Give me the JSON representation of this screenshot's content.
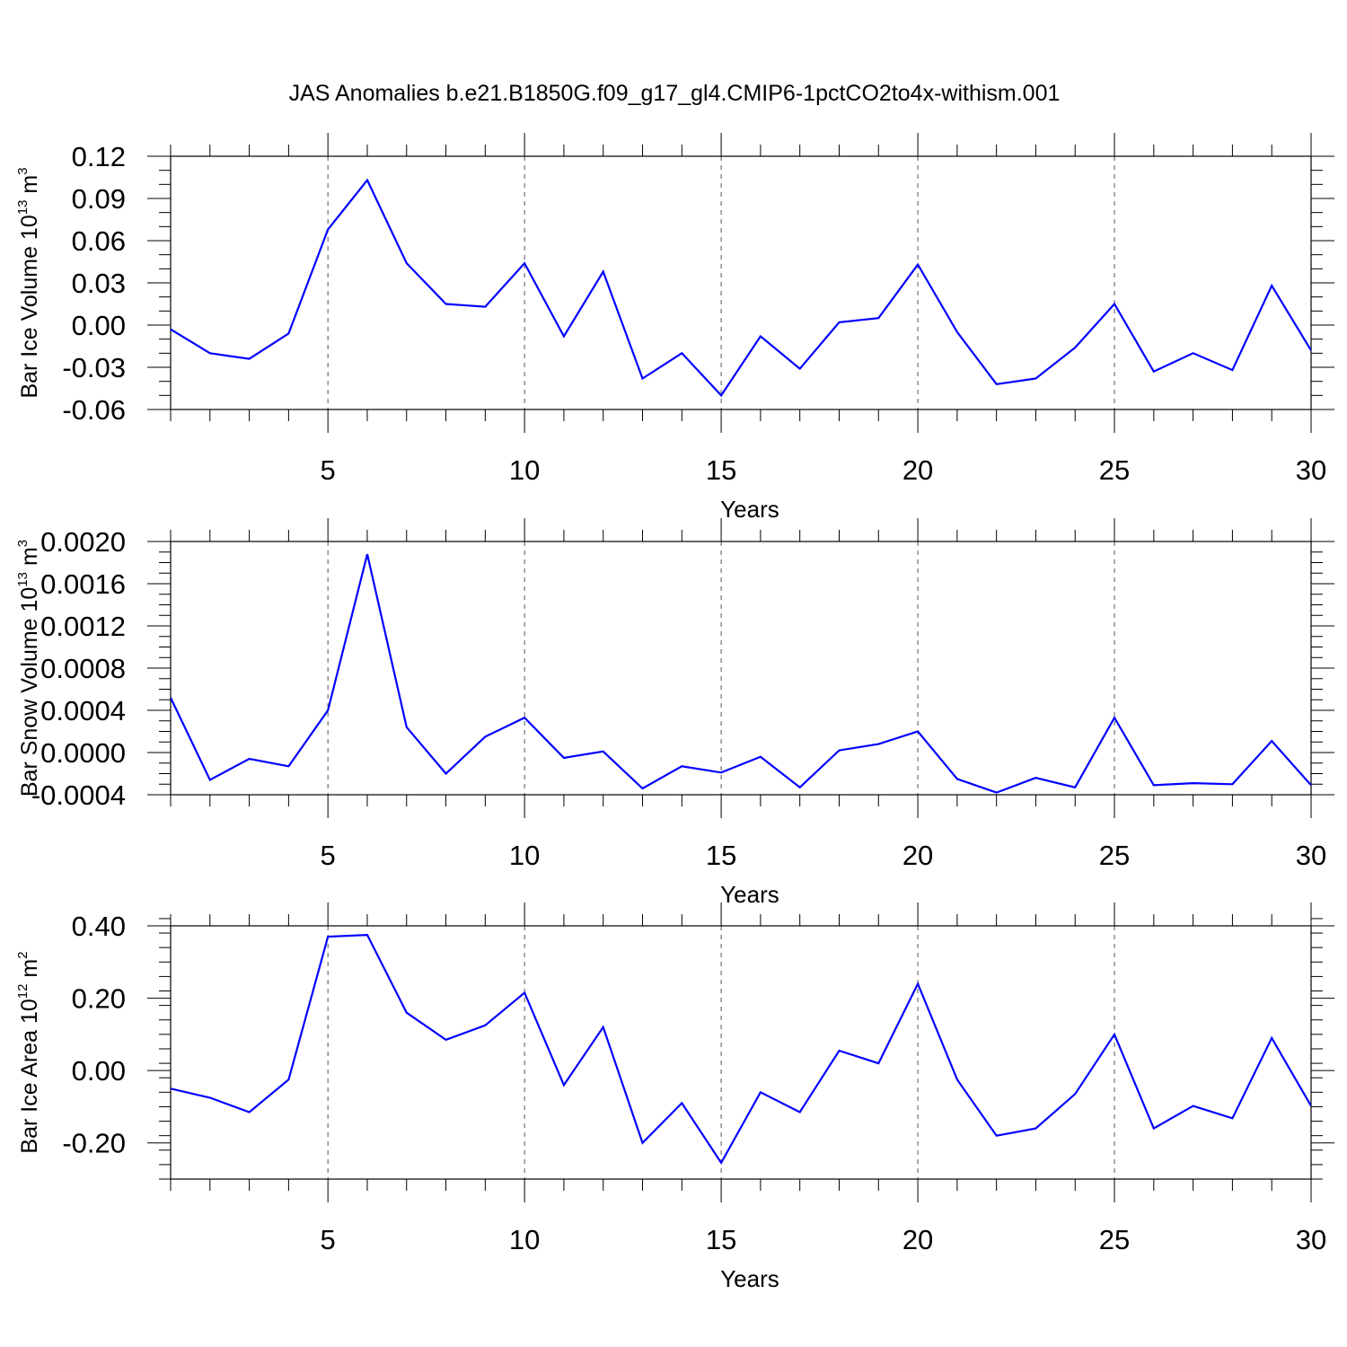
{
  "title": "JAS Anomalies b.e21.B1850G.f09_g17_gl4.CMIP6-1pctCO2to4x-withism.001",
  "colors": {
    "line": "#0000ff",
    "axis": "#000000",
    "grid": "#555555"
  },
  "chart_data": [
    {
      "type": "line",
      "ylabel": {
        "base": "Bar Ice Volume 10",
        "exp1": "13",
        "mid": " m",
        "exp2": "3"
      },
      "xlabel": "Years",
      "xlim": [
        1,
        30
      ],
      "ylim": [
        -0.06,
        0.12
      ],
      "x_ticks": [
        5,
        10,
        15,
        20,
        25,
        30
      ],
      "y_ticks": [
        -0.06,
        -0.03,
        0.0,
        0.03,
        0.06,
        0.09,
        0.12
      ],
      "y_tick_labels": [
        "-0.06",
        "-0.03",
        "0.00",
        "0.03",
        "0.06",
        "0.09",
        "0.12"
      ],
      "y_minor_step": 0.01,
      "grid": "vertical dashed at major x ticks",
      "x": [
        1,
        2,
        3,
        4,
        5,
        6,
        7,
        8,
        9,
        10,
        11,
        12,
        13,
        14,
        15,
        16,
        17,
        18,
        19,
        20,
        21,
        22,
        23,
        24,
        25,
        26,
        27,
        28,
        29,
        30
      ],
      "values": [
        -0.003,
        -0.02,
        -0.024,
        -0.006,
        0.068,
        0.103,
        0.044,
        0.015,
        0.013,
        0.044,
        -0.008,
        0.038,
        -0.038,
        -0.02,
        -0.05,
        -0.008,
        -0.031,
        0.002,
        0.005,
        0.043,
        -0.005,
        -0.042,
        -0.038,
        -0.016,
        0.015,
        -0.033,
        -0.02,
        -0.032,
        0.028,
        -0.018
      ]
    },
    {
      "type": "line",
      "ylabel": {
        "base": "Bar Snow Volume 10",
        "exp1": "13",
        "mid": " m",
        "exp2": "3"
      },
      "xlabel": "Years",
      "xlim": [
        1,
        30
      ],
      "ylim": [
        -0.0004,
        0.002
      ],
      "x_ticks": [
        5,
        10,
        15,
        20,
        25,
        30
      ],
      "y_ticks": [
        -0.0004,
        0.0,
        0.0004,
        0.0008,
        0.0012,
        0.0016,
        0.002
      ],
      "y_tick_labels": [
        "-0.0004",
        "0.0000",
        "0.0004",
        "0.0008",
        "0.0012",
        "0.0016",
        "0.0020"
      ],
      "y_minor_step": 0.0001,
      "grid": "vertical dashed at major x ticks",
      "x": [
        1,
        2,
        3,
        4,
        5,
        6,
        7,
        8,
        9,
        10,
        11,
        12,
        13,
        14,
        15,
        16,
        17,
        18,
        19,
        20,
        21,
        22,
        23,
        24,
        25,
        26,
        27,
        28,
        29,
        30
      ],
      "values": [
        0.00052,
        -0.00026,
        -6e-05,
        -0.00013,
        0.0004,
        0.00188,
        0.00024,
        -0.0002,
        0.00015,
        0.00033,
        -5e-05,
        1e-05,
        -0.00034,
        -0.00013,
        -0.00019,
        -4e-05,
        -0.00033,
        2e-05,
        8e-05,
        0.0002,
        -0.00025,
        -0.00038,
        -0.00024,
        -0.00033,
        0.00033,
        -0.00031,
        -0.00029,
        -0.0003,
        0.00011,
        -0.00031
      ]
    },
    {
      "type": "line",
      "ylabel": {
        "base": "Bar Ice Area 10",
        "exp1": "12",
        "mid": " m",
        "exp2": "2"
      },
      "xlabel": "Years",
      "xlim": [
        1,
        30
      ],
      "ylim": [
        -0.3,
        0.4
      ],
      "x_ticks": [
        5,
        10,
        15,
        20,
        25,
        30
      ],
      "y_ticks": [
        -0.2,
        0.0,
        0.2,
        0.4
      ],
      "y_tick_labels": [
        "-0.20",
        "0.00",
        "0.20",
        "0.40"
      ],
      "y_minor_step": 0.04,
      "grid": "vertical dashed at major x ticks",
      "x": [
        1,
        2,
        3,
        4,
        5,
        6,
        7,
        8,
        9,
        10,
        11,
        12,
        13,
        14,
        15,
        16,
        17,
        18,
        19,
        20,
        21,
        22,
        23,
        24,
        25,
        26,
        27,
        28,
        29,
        30
      ],
      "values": [
        -0.05,
        -0.075,
        -0.115,
        -0.025,
        0.37,
        0.375,
        0.16,
        0.085,
        0.125,
        0.215,
        -0.04,
        0.12,
        -0.2,
        -0.09,
        -0.255,
        -0.06,
        -0.115,
        0.055,
        0.02,
        0.24,
        -0.025,
        -0.18,
        -0.16,
        -0.065,
        0.1,
        -0.16,
        -0.098,
        -0.132,
        0.09,
        -0.098
      ]
    }
  ]
}
